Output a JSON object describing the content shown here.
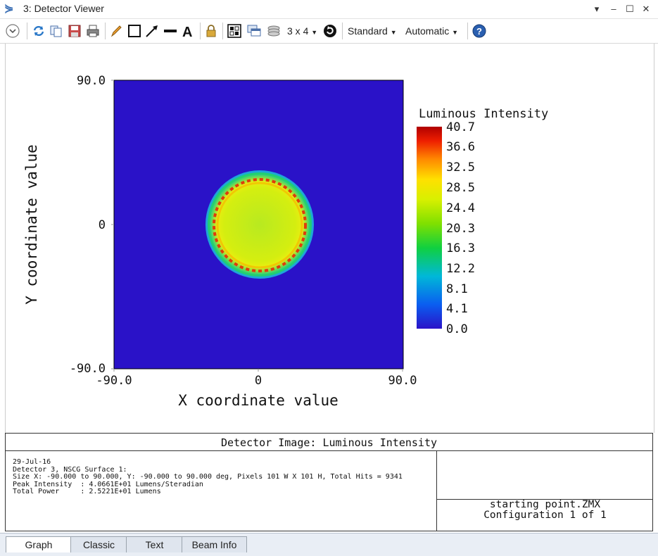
{
  "window": {
    "title": "3: Detector Viewer",
    "controls": [
      "▾",
      "–",
      "☐",
      "✕"
    ]
  },
  "toolbar": {
    "layout_label": "3 x 4",
    "standard_label": "Standard",
    "automatic_label": "Automatic"
  },
  "plot": {
    "x_axis_label": "X coordinate value",
    "y_axis_label": "Y coordinate value",
    "x_ticks": [
      "-90.0",
      "0",
      "90.0"
    ],
    "y_ticks": [
      "90.0",
      "0",
      "-90.0"
    ],
    "colorbar_title": "Luminous Intensity",
    "colorbar_ticks": [
      "40.7",
      "36.6",
      "32.5",
      "28.5",
      "24.4",
      "20.3",
      "16.3",
      "12.2",
      "8.1",
      "4.1",
      "0.0"
    ]
  },
  "info": {
    "title": "Detector Image: Luminous Intensity",
    "lines": [
      "29-Jul-16",
      "Detector 3, NSCG Surface 1:",
      "Size X: -90.000 to 90.000, Y: -90.000 to 90.000 deg, Pixels 101 W X 101 H, Total Hits = 9341",
      "Peak Intensity  : 4.0661E+01 Lumens/Steradian",
      "Total Power     : 2.5221E+01 Lumens"
    ],
    "file_name": "starting point.ZMX",
    "configuration": "Configuration 1 of 1"
  },
  "tabs": [
    "Graph",
    "Classic",
    "Text",
    "Beam Info"
  ],
  "colors": {
    "background_plot": "#2a12c8",
    "accent": "#3a6fb5"
  }
}
